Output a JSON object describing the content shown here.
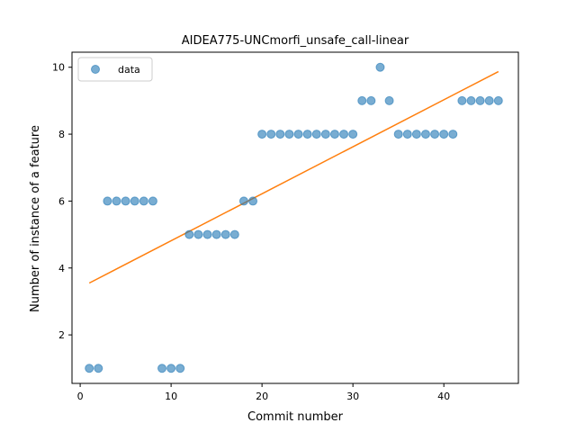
{
  "chart_data": {
    "type": "scatter",
    "title": "AIDEA775-UNCmorfi_unsafe_call-linear",
    "xlabel": "Commit number",
    "ylabel": "Number of instance of a feature",
    "xlim": [
      -0.9,
      48.2
    ],
    "ylim": [
      0.55,
      10.45
    ],
    "xticks": [
      0,
      10,
      20,
      30,
      40
    ],
    "yticks": [
      2,
      4,
      6,
      8,
      10
    ],
    "legend": {
      "placement": "top-left",
      "entries": [
        "data"
      ]
    },
    "colors": {
      "points": "#1f77b4",
      "fit": "#ff7f0e"
    },
    "series": [
      {
        "name": "data",
        "kind": "points",
        "x": [
          1,
          2,
          3,
          4,
          5,
          6,
          7,
          8,
          9,
          10,
          11,
          12,
          13,
          14,
          15,
          16,
          17,
          18,
          19,
          20,
          21,
          22,
          23,
          24,
          25,
          26,
          27,
          28,
          29,
          30,
          31,
          32,
          33,
          34,
          35,
          36,
          37,
          38,
          39,
          40,
          41,
          42,
          43,
          44,
          45,
          46
        ],
        "y": [
          1,
          1,
          6,
          6,
          6,
          6,
          6,
          6,
          1,
          1,
          1,
          5,
          5,
          5,
          5,
          5,
          5,
          6,
          6,
          8,
          8,
          8,
          8,
          8,
          8,
          8,
          8,
          8,
          8,
          8,
          9,
          9,
          10,
          9,
          8,
          8,
          8,
          8,
          8,
          8,
          8,
          9,
          9,
          9,
          9,
          9
        ]
      },
      {
        "kind": "line",
        "x": [
          1,
          46
        ],
        "y": [
          3.55,
          9.87
        ]
      }
    ]
  }
}
